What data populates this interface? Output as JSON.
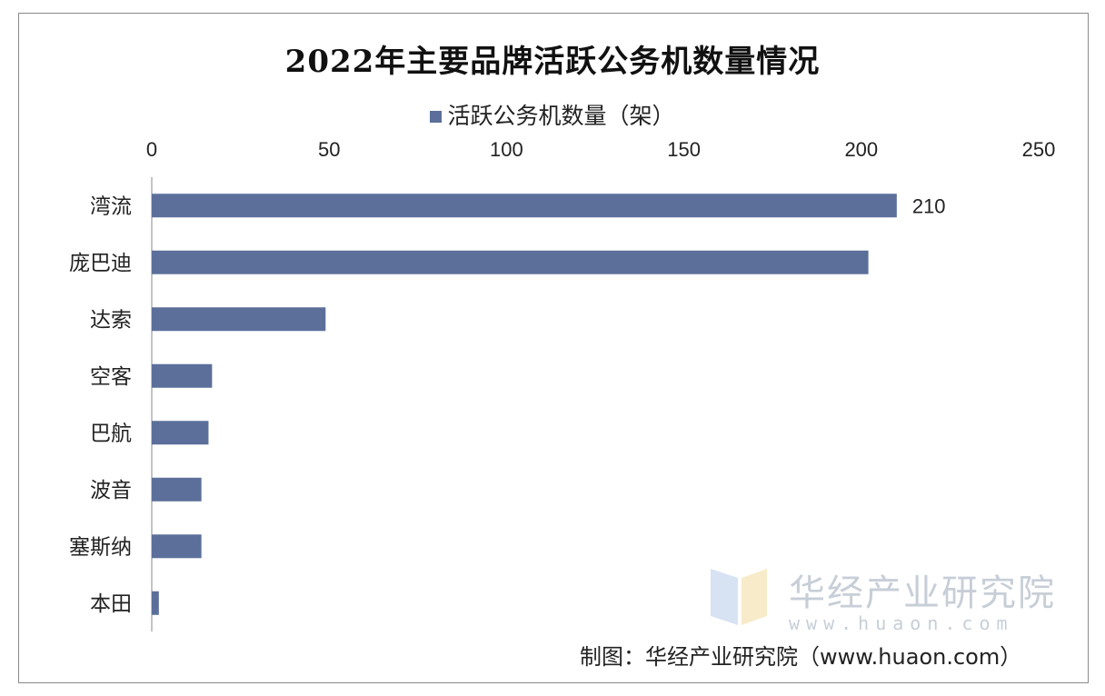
{
  "chart_data": {
    "type": "bar",
    "orientation": "horizontal",
    "title": "2022年主要品牌活跃公务机数量情况",
    "categories": [
      "湾流",
      "庞巴迪",
      "达索",
      "空客",
      "巴航",
      "波音",
      "塞斯纳",
      "本田"
    ],
    "series": [
      {
        "name": "活跃公务机数量（架）",
        "values": [
          210,
          202,
          49,
          17,
          16,
          14,
          14,
          2
        ],
        "color": "#5b6f9a"
      }
    ],
    "data_labels": [
      {
        "category": "湾流",
        "text": "210"
      }
    ],
    "xlim": [
      0,
      250
    ],
    "x_ticks": [
      "0",
      "50",
      "100",
      "150",
      "200",
      "250"
    ],
    "axis_position": "top",
    "legend_position": "top-center",
    "grid": false
  },
  "source_text": "制图：华经产业研究院（www.huaon.com）",
  "watermark": {
    "name": "华经产业研究院",
    "url": "www.huaon.com"
  }
}
